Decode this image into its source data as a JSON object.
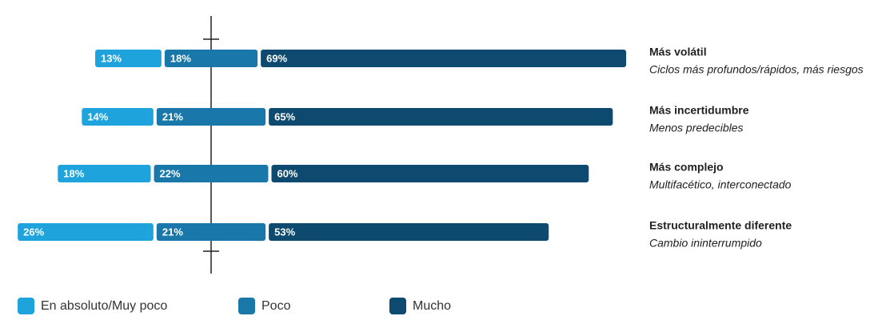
{
  "chart_data": {
    "type": "bar",
    "categories": [
      "Más volátil",
      "Más incertidumbre",
      "Más complejo",
      "Estructuralmente diferente"
    ],
    "subtitles": [
      "Ciclos más profundos/rápidos, más riesgos",
      "Menos predecibles",
      "Multifacético, interconectado",
      "Cambio ininterrumpido"
    ],
    "series": [
      {
        "name": "En absoluto/Muy poco",
        "color": "#1fa3dd",
        "values": [
          13,
          14,
          18,
          26
        ],
        "value_labels": [
          "13%",
          "14%",
          "18%",
          "26%"
        ]
      },
      {
        "name": "Poco",
        "color": "#1a77aa",
        "values": [
          18,
          21,
          22,
          21
        ],
        "value_labels": [
          "18%",
          "21%",
          "22%",
          "21%"
        ]
      },
      {
        "name": "Mucho",
        "color": "#0e4a6f",
        "values": [
          69,
          65,
          60,
          53
        ],
        "value_labels": [
          "69%",
          "65%",
          "60%",
          "53%"
        ]
      }
    ]
  }
}
